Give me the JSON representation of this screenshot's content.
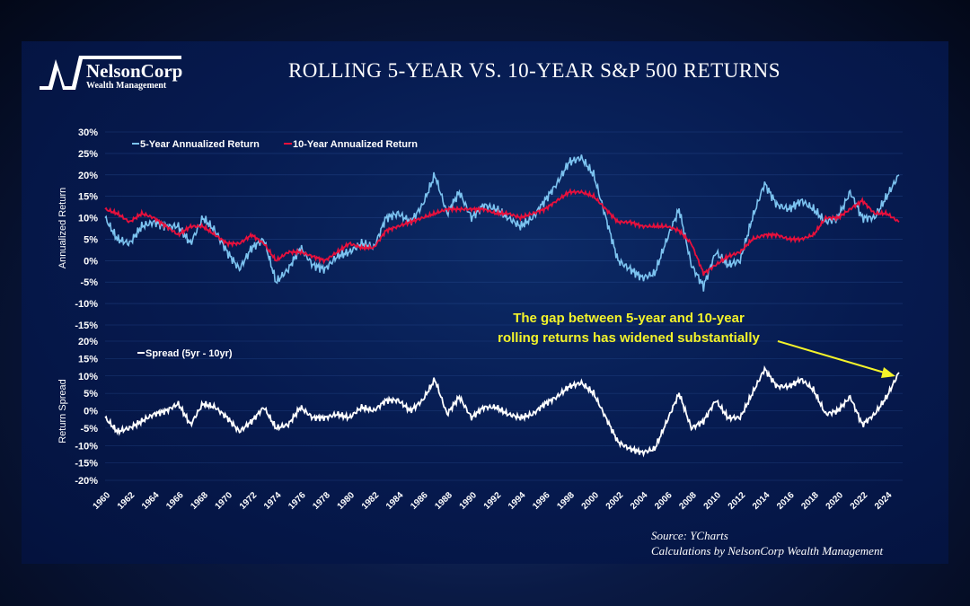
{
  "header": {
    "title": "ROLLING 5-YEAR VS. 10-YEAR S&P 500 RETURNS",
    "logo_name": "NelsonCorp",
    "logo_sub": "Wealth Management"
  },
  "footer": {
    "source": "Source: YCharts",
    "calc": "Calculations by NelsonCorp Wealth Management"
  },
  "annotation": {
    "line1": "The gap between 5-year and 10-year",
    "line2": "rolling returns has widened substantially",
    "color": "#f4f42a"
  },
  "chart_data": [
    {
      "type": "line",
      "title": "",
      "ylabel": "Annualized Return",
      "ylim": [
        -15,
        30
      ],
      "yticks": [
        "30%",
        "25%",
        "20%",
        "15%",
        "10%",
        "5%",
        "0%",
        "-5%",
        "-10%",
        "-15%"
      ],
      "grid": true,
      "legend": "top-left",
      "x": [
        1960,
        1961,
        1962,
        1963,
        1964,
        1965,
        1966,
        1967,
        1968,
        1969,
        1970,
        1971,
        1972,
        1973,
        1974,
        1975,
        1976,
        1977,
        1978,
        1979,
        1980,
        1981,
        1982,
        1983,
        1984,
        1985,
        1986,
        1987,
        1988,
        1989,
        1990,
        1991,
        1992,
        1993,
        1994,
        1995,
        1996,
        1997,
        1998,
        1999,
        2000,
        2001,
        2002,
        2003,
        2004,
        2005,
        2006,
        2007,
        2008,
        2009,
        2010,
        2011,
        2012,
        2013,
        2014,
        2015,
        2016,
        2017,
        2018,
        2019,
        2020,
        2021,
        2022,
        2023,
        2024,
        2025
      ],
      "series": [
        {
          "name": "5-Year Annualized Return",
          "color": "#7cc3f0",
          "values": [
            10,
            5,
            4,
            8,
            9,
            8,
            8,
            4,
            10,
            7,
            2,
            -2,
            3,
            5,
            -5,
            -2,
            3,
            -1,
            -2,
            1,
            2,
            4,
            3,
            10,
            11,
            9,
            13,
            20,
            11,
            16,
            10,
            13,
            12,
            10,
            8,
            10,
            14,
            18,
            23,
            24,
            20,
            10,
            0,
            -2,
            -4,
            -3,
            5,
            12,
            -1,
            -6,
            2,
            -1,
            0,
            10,
            18,
            13,
            12,
            14,
            12,
            9,
            10,
            16,
            10,
            10,
            15,
            20
          ]
        },
        {
          "name": "10-Year Annualized Return",
          "color": "#e8103c",
          "values": [
            12,
            11,
            9,
            11,
            10,
            8,
            6,
            8,
            8,
            6,
            4,
            4,
            6,
            4,
            0,
            2,
            2,
            1,
            0,
            2,
            4,
            3,
            3,
            7,
            8,
            9,
            10,
            11,
            12,
            12,
            12,
            12,
            11,
            11,
            10,
            11,
            12,
            14,
            16,
            16,
            15,
            12,
            9,
            9,
            8,
            8,
            8,
            7,
            4,
            -3,
            -1,
            1,
            2,
            5,
            6,
            6,
            5,
            5,
            6,
            10,
            10,
            12,
            14,
            11,
            11,
            9
          ]
        }
      ]
    },
    {
      "type": "line",
      "title": "",
      "ylabel": "Return Spread",
      "ylim": [
        -20,
        20
      ],
      "yticks": [
        "20%",
        "15%",
        "10%",
        "5%",
        "0%",
        "-5%",
        "-10%",
        "-15%",
        "-20%"
      ],
      "grid": true,
      "legend": "top-left",
      "series": [
        {
          "name": "Spread (5yr - 10yr)",
          "color": "#ffffff",
          "derived": "5yr minus 10yr"
        }
      ],
      "xticks": [
        "1960",
        "1962",
        "1964",
        "1966",
        "1968",
        "1970",
        "1972",
        "1974",
        "1976",
        "1978",
        "1980",
        "1982",
        "1984",
        "1986",
        "1988",
        "1990",
        "1992",
        "1994",
        "1996",
        "1998",
        "2000",
        "2002",
        "2004",
        "2006",
        "2008",
        "2010",
        "2012",
        "2014",
        "2016",
        "2018",
        "2020",
        "2022",
        "2024"
      ]
    }
  ]
}
